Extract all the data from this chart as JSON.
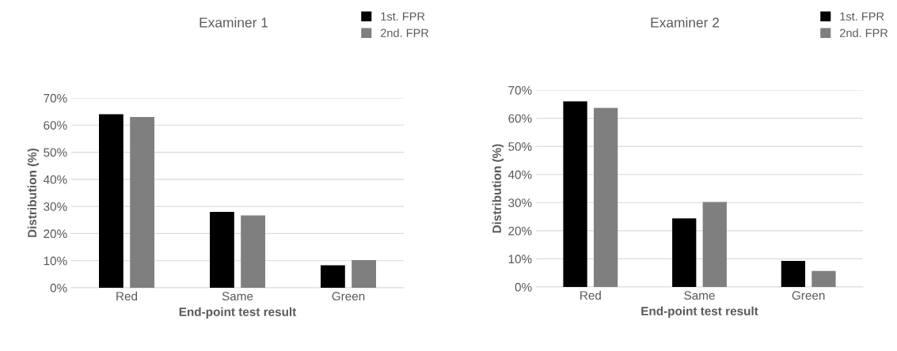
{
  "chart_data": [
    {
      "type": "bar",
      "title": "Examiner 1",
      "xlabel": "End-point test result",
      "ylabel": "Distribution (%)",
      "categories": [
        "Red",
        "Same",
        "Green"
      ],
      "series": [
        {
          "name": "1st. FPR",
          "color": "#000000",
          "values": [
            64,
            28,
            8.3
          ]
        },
        {
          "name": "2nd. FPR",
          "color": "#7f7f7f",
          "values": [
            63,
            26.7,
            10.2
          ]
        }
      ],
      "ylim": [
        0,
        70
      ],
      "yticks": [
        {
          "value": 0,
          "label": "0%"
        },
        {
          "value": 10,
          "label": "10%"
        },
        {
          "value": 20,
          "label": "20%"
        },
        {
          "value": 30,
          "label": "30%"
        },
        {
          "value": 40,
          "label": "40%"
        },
        {
          "value": 50,
          "label": "50%"
        },
        {
          "value": 60,
          "label": "60%"
        },
        {
          "value": 70,
          "label": "70%"
        }
      ],
      "grid": "y",
      "legend": "top right"
    },
    {
      "type": "bar",
      "title": "Examiner 2",
      "xlabel": "End-point test result",
      "ylabel": "Distribution (%)",
      "categories": [
        "Red",
        "Same",
        "Green"
      ],
      "series": [
        {
          "name": "1st. FPR",
          "color": "#000000",
          "values": [
            66,
            24.4,
            9.3
          ]
        },
        {
          "name": "2nd. FPR",
          "color": "#7f7f7f",
          "values": [
            63.7,
            30.2,
            5.7
          ]
        }
      ],
      "ylim": [
        0,
        70
      ],
      "yticks": [
        {
          "value": 0,
          "label": "0%"
        },
        {
          "value": 10,
          "label": "10%"
        },
        {
          "value": 20,
          "label": "20%"
        },
        {
          "value": 30,
          "label": "30%"
        },
        {
          "value": 40,
          "label": "40%"
        },
        {
          "value": 50,
          "label": "50%"
        },
        {
          "value": 60,
          "label": "60%"
        },
        {
          "value": 70,
          "label": "70%"
        }
      ],
      "grid": "y",
      "legend": "top right"
    }
  ]
}
